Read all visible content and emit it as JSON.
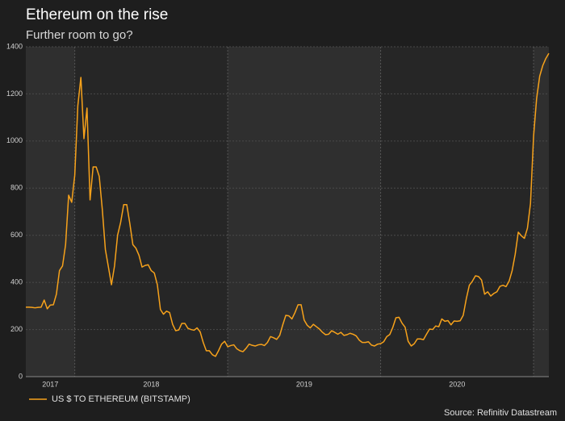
{
  "chart_data": {
    "type": "line",
    "title": "Ethereum on the rise",
    "subtitle": "Further room to go?",
    "source": "Source: Refinitiv Datastream",
    "xlim": [
      2017.68,
      2021.1
    ],
    "xticks": [
      {
        "value": 2017.84,
        "label": "2017"
      },
      {
        "value": 2018.5,
        "label": "2018"
      },
      {
        "value": 2019.5,
        "label": "2019"
      },
      {
        "value": 2020.5,
        "label": "2020"
      }
    ],
    "xgrid": [
      2018,
      2019,
      2020,
      2021
    ],
    "ylim": [
      0,
      1400
    ],
    "yticks": [
      0,
      200,
      400,
      600,
      800,
      1000,
      1200,
      1400
    ],
    "grid": true,
    "legend": "bottom-left",
    "x": [
      2017.68,
      2017.7,
      2017.72,
      2017.74,
      2017.76,
      2017.78,
      2017.8,
      2017.82,
      2017.84,
      2017.86,
      2017.88,
      2017.9,
      2017.92,
      2017.94,
      2017.96,
      2017.98,
      2018.0,
      2018.02,
      2018.04,
      2018.06,
      2018.08,
      2018.1,
      2018.12,
      2018.14,
      2018.16,
      2018.18,
      2018.2,
      2018.22,
      2018.24,
      2018.26,
      2018.28,
      2018.3,
      2018.32,
      2018.34,
      2018.36,
      2018.38,
      2018.4,
      2018.42,
      2018.44,
      2018.46,
      2018.48,
      2018.5,
      2018.52,
      2018.54,
      2018.56,
      2018.58,
      2018.6,
      2018.62,
      2018.64,
      2018.66,
      2018.68,
      2018.7,
      2018.72,
      2018.74,
      2018.76,
      2018.78,
      2018.8,
      2018.82,
      2018.84,
      2018.86,
      2018.88,
      2018.9,
      2018.92,
      2018.94,
      2018.96,
      2018.98,
      2019.0,
      2019.02,
      2019.04,
      2019.06,
      2019.08,
      2019.1,
      2019.12,
      2019.14,
      2019.16,
      2019.18,
      2019.2,
      2019.22,
      2019.24,
      2019.26,
      2019.28,
      2019.3,
      2019.32,
      2019.34,
      2019.36,
      2019.38,
      2019.4,
      2019.42,
      2019.44,
      2019.46,
      2019.48,
      2019.5,
      2019.52,
      2019.54,
      2019.56,
      2019.58,
      2019.6,
      2019.62,
      2019.64,
      2019.66,
      2019.68,
      2019.7,
      2019.72,
      2019.74,
      2019.76,
      2019.78,
      2019.8,
      2019.82,
      2019.84,
      2019.86,
      2019.88,
      2019.9,
      2019.92,
      2019.94,
      2019.96,
      2019.98,
      2020.0,
      2020.02,
      2020.04,
      2020.06,
      2020.08,
      2020.1,
      2020.12,
      2020.14,
      2020.16,
      2020.18,
      2020.2,
      2020.22,
      2020.24,
      2020.26,
      2020.28,
      2020.3,
      2020.32,
      2020.34,
      2020.36,
      2020.38,
      2020.4,
      2020.42,
      2020.44,
      2020.46,
      2020.48,
      2020.5,
      2020.52,
      2020.54,
      2020.56,
      2020.58,
      2020.6,
      2020.62,
      2020.64,
      2020.66,
      2020.68,
      2020.7,
      2020.72,
      2020.74,
      2020.76,
      2020.78,
      2020.8,
      2020.82,
      2020.84,
      2020.86,
      2020.88,
      2020.9,
      2020.92,
      2020.94,
      2020.96,
      2020.98,
      2021.0,
      2021.02,
      2021.04,
      2021.06,
      2021.08,
      2021.1
    ],
    "series": [
      {
        "name": "US $ TO ETHEREUM (BITSTAMP)",
        "color": "#f7a21b",
        "values": [
          295,
          295,
          294,
          292,
          294,
          295,
          325,
          288,
          304,
          305,
          350,
          450,
          470,
          560,
          770,
          740,
          855,
          1150,
          1270,
          1010,
          1140,
          750,
          890,
          890,
          850,
          710,
          540,
          465,
          390,
          470,
          600,
          655,
          730,
          730,
          650,
          560,
          545,
          515,
          465,
          472,
          475,
          450,
          440,
          390,
          285,
          265,
          278,
          272,
          222,
          195,
          198,
          226,
          226,
          205,
          200,
          197,
          207,
          190,
          145,
          110,
          110,
          93,
          86,
          110,
          138,
          150,
          127,
          132,
          135,
          118,
          110,
          106,
          120,
          138,
          133,
          130,
          135,
          137,
          132,
          145,
          170,
          165,
          158,
          175,
          220,
          260,
          258,
          245,
          272,
          305,
          305,
          240,
          218,
          207,
          222,
          212,
          202,
          188,
          178,
          180,
          195,
          188,
          180,
          188,
          175,
          178,
          184,
          180,
          173,
          155,
          145,
          145,
          148,
          134,
          130,
          138,
          140,
          148,
          170,
          179,
          210,
          250,
          252,
          227,
          210,
          150,
          130,
          140,
          160,
          160,
          157,
          180,
          202,
          200,
          215,
          212,
          245,
          235,
          238,
          220,
          236,
          235,
          237,
          260,
          330,
          388,
          405,
          428,
          425,
          410,
          350,
          360,
          342,
          353,
          360,
          383,
          388,
          382,
          405,
          450,
          520,
          613,
          598,
          587,
          630,
          735,
          1020,
          1180,
          1275,
          1320,
          1350,
          1372
        ]
      }
    ]
  }
}
